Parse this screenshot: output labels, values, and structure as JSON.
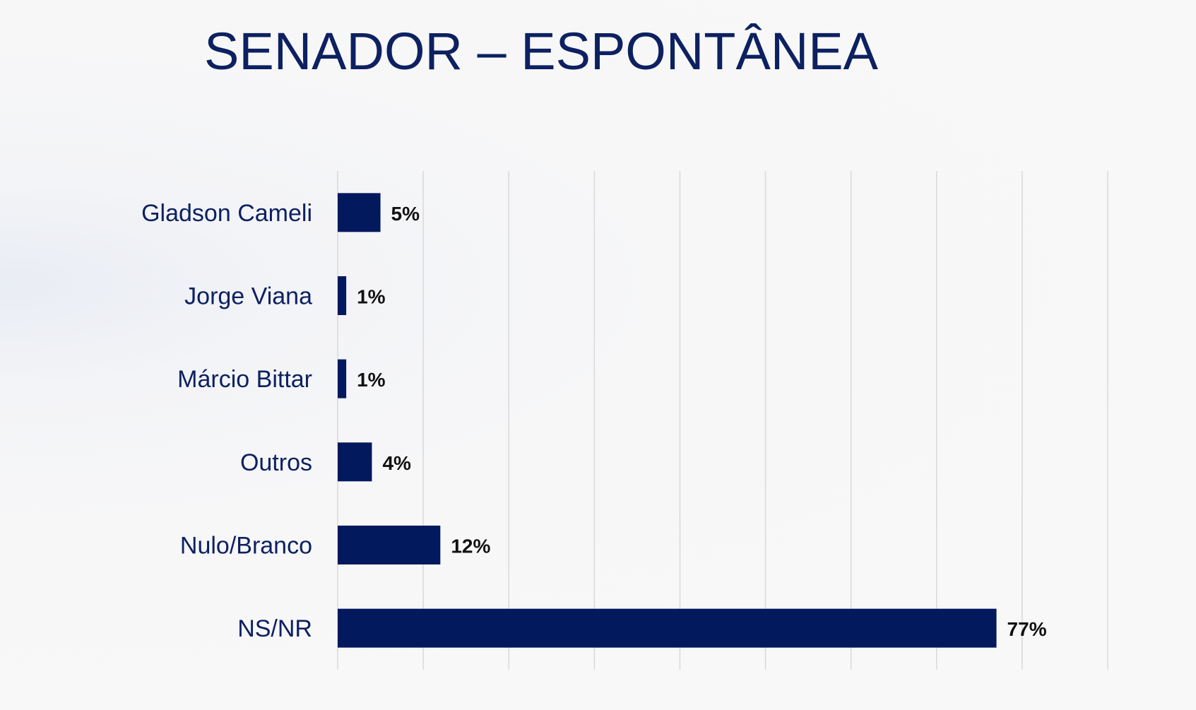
{
  "slide": {
    "title": "SENADOR – ESPONTÂNEA"
  },
  "colors": {
    "bar": "#03195e",
    "title": "#0d2161",
    "category_text": "#0d2161",
    "value_text": "#111111",
    "grid": "#d9d9dc"
  },
  "chart_data": {
    "type": "bar",
    "orientation": "horizontal",
    "title": "SENADOR – ESPONTÂNEA",
    "categories": [
      "Gladson Cameli",
      "Jorge Viana",
      "Márcio Bittar",
      "Outros",
      "Nulo/Branco",
      "NS/NR"
    ],
    "values": [
      5,
      1,
      1,
      4,
      12,
      77
    ],
    "value_labels": [
      "5%",
      "1%",
      "1%",
      "4%",
      "12%",
      "77%"
    ],
    "unit": "%",
    "xlim": [
      0,
      90
    ],
    "grid_step": 10,
    "grid": true,
    "axis_tick_labels_shown": false,
    "legend": "none"
  }
}
